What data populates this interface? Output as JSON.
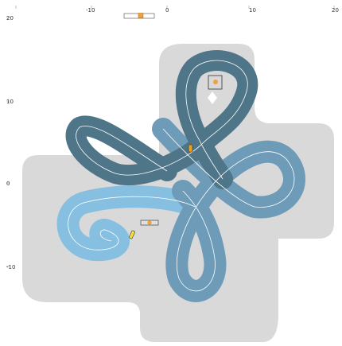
{
  "axes": {
    "x_ticks": [
      "-10",
      "0",
      "10",
      "20"
    ],
    "y_ticks": [
      "20",
      "10",
      "0",
      "-10"
    ]
  },
  "colors": {
    "background": "#ffffff",
    "offroad_area": "#d9d9d9",
    "track_dark": "#4f7589",
    "track_mid": "#6e9cb8",
    "track_light": "#86bfe0",
    "centerline": "#ffffff",
    "marker": "#f0a03c",
    "car_yellow": "#f2e43a",
    "car_orange": "#e8a020"
  },
  "game": {
    "cars": [
      {
        "name": "car-yellow",
        "color": "#f2e43a"
      },
      {
        "name": "car-orange",
        "color": "#e8a020"
      }
    ],
    "zoom_slider_level": 0.6,
    "selected_object": "target-box"
  }
}
